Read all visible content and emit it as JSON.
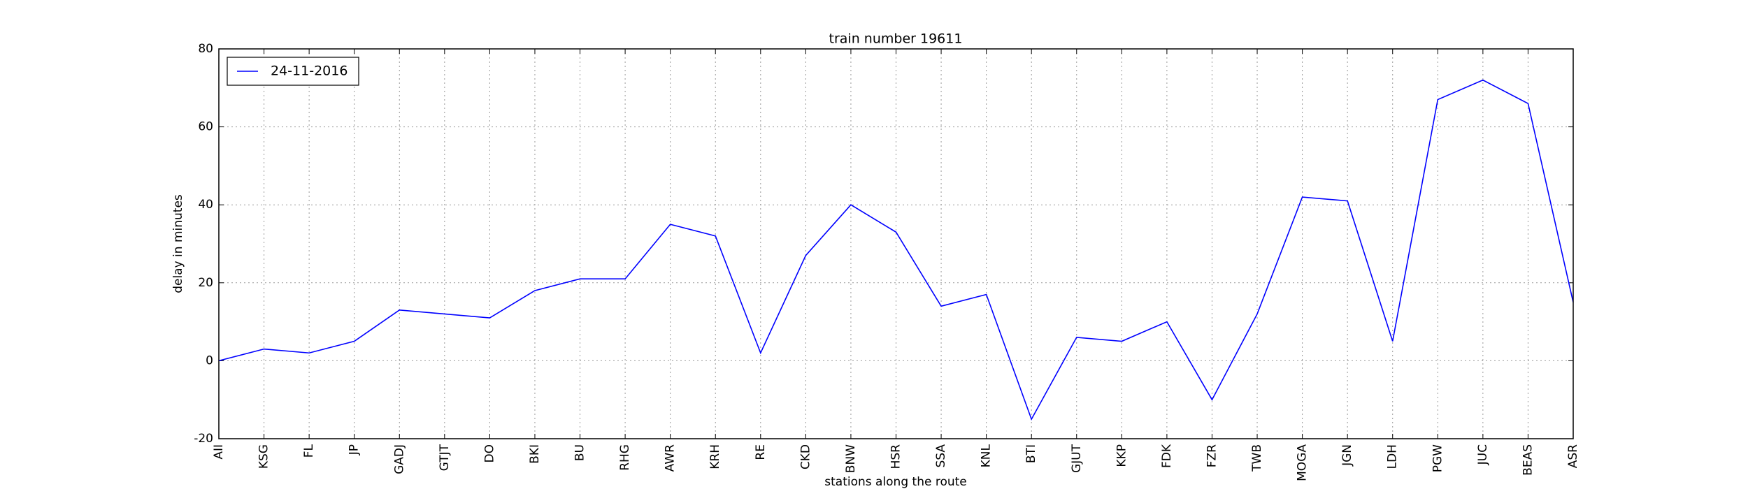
{
  "chart_data": {
    "type": "line",
    "title": "train number 19611",
    "x_label": "stations along the route",
    "y_label": "delay in minutes",
    "categories": [
      "AII",
      "KSG",
      "FL",
      "JP",
      "GADJ",
      "GTJT",
      "DO",
      "BKI",
      "BU",
      "RHG",
      "AWR",
      "KRH",
      "RE",
      "CKD",
      "BNW",
      "HSR",
      "SSA",
      "KNL",
      "BTI",
      "GJUT",
      "KKP",
      "FDK",
      "FZR",
      "TWB",
      "MOGA",
      "JGN",
      "LDH",
      "PGW",
      "JUC",
      "BEAS",
      "ASR"
    ],
    "series": [
      {
        "name": "24-11-2016",
        "color": "#0000ff",
        "values": [
          0,
          3,
          2,
          5,
          13,
          12,
          11,
          18,
          21,
          21,
          35,
          32,
          2,
          27,
          40,
          33,
          14,
          17,
          -15,
          6,
          5,
          10,
          -10,
          12,
          42,
          41,
          5,
          67,
          72,
          66,
          15
        ]
      }
    ],
    "ylim": [
      -20,
      80
    ],
    "yticks": [
      -20,
      0,
      20,
      40,
      60,
      80
    ],
    "grid": true,
    "legend": "upper left"
  }
}
